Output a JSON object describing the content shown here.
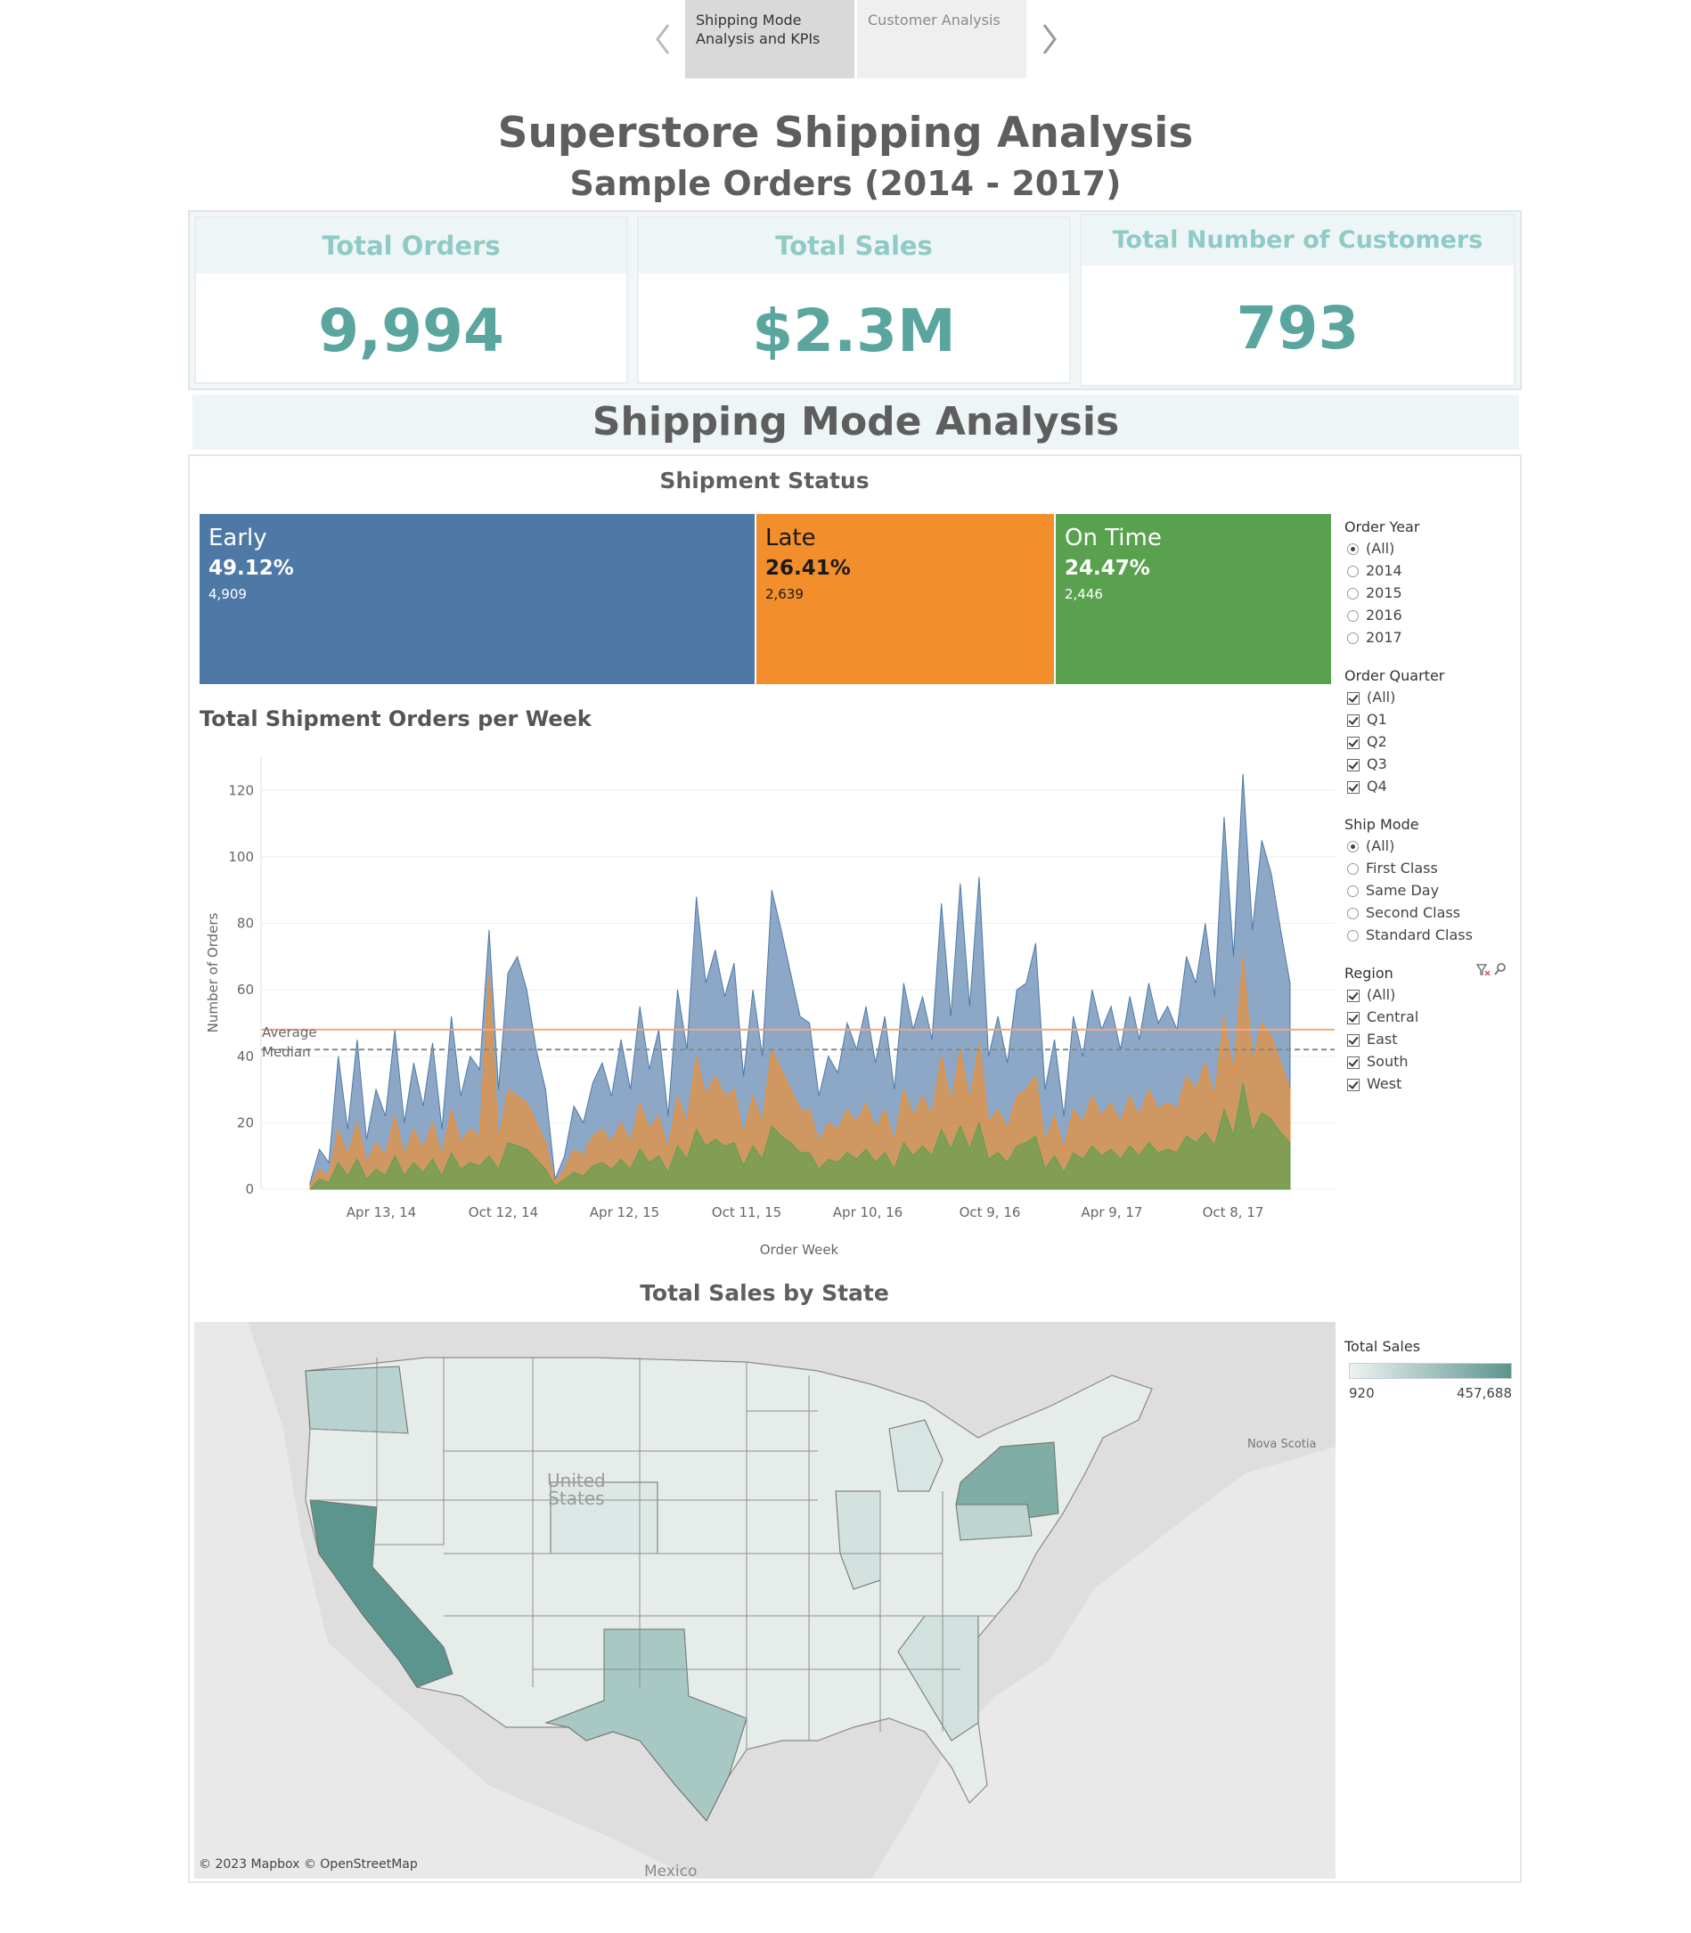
{
  "story": {
    "tabs": [
      {
        "label": "Shipping Mode\nAnalysis and KPIs",
        "line1": "Shipping Mode",
        "line2": "Analysis and KPIs",
        "active": true
      },
      {
        "label": "Customer Analysis",
        "active": false
      }
    ]
  },
  "header": {
    "title": "Superstore Shipping Analysis",
    "subtitle": "Sample Orders (2014 - 2017)"
  },
  "kpis": [
    {
      "label": "Total Orders",
      "value": "9,994"
    },
    {
      "label": "Total Sales",
      "value": "$2.3M"
    },
    {
      "label": "Total Number of Customers",
      "value": "793"
    }
  ],
  "section_title": "Shipping Mode Analysis",
  "shipment_status": {
    "title": "Shipment Status",
    "items": [
      {
        "label": "Early",
        "pct": "49.12%",
        "count": "4,909",
        "color": "#4e79a7"
      },
      {
        "label": "Late",
        "pct": "26.41%",
        "count": "2,639",
        "color": "#f28e2b"
      },
      {
        "label": "On Time",
        "pct": "24.47%",
        "count": "2,446",
        "color": "#59a14f"
      }
    ]
  },
  "weekly_chart": {
    "title": "Total Shipment Orders per Week",
    "ylabel": "Number of Orders",
    "xlabel": "Order Week",
    "yticks": [
      "0",
      "20",
      "40",
      "60",
      "80",
      "100",
      "120"
    ],
    "xticks": [
      "Apr 13, 14",
      "Oct 12, 14",
      "Apr 12, 15",
      "Oct 11, 15",
      "Apr 10, 16",
      "Oct 9, 16",
      "Apr 9, 17",
      "Oct 8, 17"
    ],
    "average_label": "Average",
    "median_label": "Median"
  },
  "chart_data": {
    "type": "area",
    "title": "Total Shipment Orders per Week",
    "xlabel": "Order Week",
    "ylabel": "Number of Orders",
    "ylim": [
      0,
      130
    ],
    "x_ticks": [
      "Apr 13, 14",
      "Oct 12, 14",
      "Apr 12, 15",
      "Oct 11, 15",
      "Apr 10, 16",
      "Oct 9, 16",
      "Apr 9, 17",
      "Oct 8, 17"
    ],
    "reference_lines": [
      {
        "label": "Average",
        "value": 48,
        "color": "#f4a582"
      },
      {
        "label": "Median",
        "value": 42,
        "color": "#888888"
      }
    ],
    "x": [
      "2014-01-05",
      "2014-01-19",
      "2014-02-02",
      "2014-02-16",
      "2014-03-02",
      "2014-03-16",
      "2014-03-30",
      "2014-04-13",
      "2014-04-27",
      "2014-05-11",
      "2014-05-25",
      "2014-06-08",
      "2014-06-22",
      "2014-07-06",
      "2014-07-20",
      "2014-08-03",
      "2014-08-17",
      "2014-08-31",
      "2014-09-14",
      "2014-09-28",
      "2014-10-12",
      "2014-10-26",
      "2014-11-09",
      "2014-11-23",
      "2014-12-07",
      "2014-12-21",
      "2015-01-04",
      "2015-01-18",
      "2015-02-01",
      "2015-02-15",
      "2015-03-01",
      "2015-03-15",
      "2015-03-29",
      "2015-04-12",
      "2015-04-26",
      "2015-05-10",
      "2015-05-24",
      "2015-06-07",
      "2015-06-21",
      "2015-07-05",
      "2015-07-19",
      "2015-08-02",
      "2015-08-16",
      "2015-08-30",
      "2015-09-13",
      "2015-09-27",
      "2015-10-11",
      "2015-10-25",
      "2015-11-08",
      "2015-11-22",
      "2015-12-06",
      "2015-12-20",
      "2016-01-03",
      "2016-01-17",
      "2016-01-31",
      "2016-02-14",
      "2016-02-28",
      "2016-03-13",
      "2016-03-27",
      "2016-04-10",
      "2016-04-24",
      "2016-05-08",
      "2016-05-22",
      "2016-06-05",
      "2016-06-19",
      "2016-07-03",
      "2016-07-17",
      "2016-07-31",
      "2016-08-14",
      "2016-08-28",
      "2016-09-11",
      "2016-09-25",
      "2016-10-09",
      "2016-10-23",
      "2016-11-06",
      "2016-11-20",
      "2016-12-04",
      "2016-12-18",
      "2017-01-01",
      "2017-01-15",
      "2017-01-29",
      "2017-02-12",
      "2017-02-26",
      "2017-03-12",
      "2017-03-26",
      "2017-04-09",
      "2017-04-23",
      "2017-05-07",
      "2017-05-21",
      "2017-06-04",
      "2017-06-18",
      "2017-07-02",
      "2017-07-16",
      "2017-07-30",
      "2017-08-13",
      "2017-08-27",
      "2017-09-10",
      "2017-09-24",
      "2017-10-08",
      "2017-10-22",
      "2017-11-05",
      "2017-11-19",
      "2017-12-03",
      "2017-12-17",
      "2017-12-31"
    ],
    "series": [
      {
        "name": "Early",
        "color": "#4e79a7",
        "values": [
          2,
          12,
          8,
          40,
          18,
          45,
          15,
          30,
          22,
          48,
          20,
          38,
          25,
          44,
          18,
          52,
          28,
          40,
          36,
          78,
          30,
          65,
          70,
          60,
          42,
          30,
          3,
          10,
          25,
          20,
          32,
          38,
          28,
          45,
          30,
          55,
          36,
          48,
          22,
          60,
          42,
          88,
          62,
          72,
          58,
          68,
          34,
          60,
          40,
          90,
          78,
          65,
          52,
          50,
          28,
          40,
          35,
          50,
          42,
          55,
          38,
          52,
          30,
          62,
          48,
          58,
          45,
          86,
          52,
          92,
          55,
          94,
          40,
          52,
          38,
          60,
          62,
          74,
          30,
          45,
          22,
          52,
          40,
          60,
          48,
          55,
          42,
          58,
          45,
          62,
          50,
          55,
          48,
          70,
          62,
          80,
          58,
          112,
          70,
          125,
          78,
          105,
          95,
          78,
          62
        ],
        "stacked_total": true
      },
      {
        "name": "Late",
        "color": "#f28e2b",
        "values": [
          1,
          6,
          4,
          18,
          10,
          20,
          8,
          14,
          10,
          22,
          10,
          18,
          12,
          20,
          10,
          24,
          14,
          18,
          16,
          65,
          14,
          30,
          28,
          26,
          20,
          14,
          2,
          6,
          12,
          10,
          16,
          18,
          14,
          20,
          14,
          26,
          18,
          22,
          12,
          28,
          20,
          40,
          28,
          34,
          28,
          30,
          16,
          28,
          20,
          42,
          36,
          30,
          24,
          24,
          14,
          20,
          18,
          24,
          20,
          26,
          18,
          24,
          14,
          30,
          22,
          28,
          22,
          40,
          26,
          42,
          26,
          44,
          20,
          24,
          18,
          28,
          30,
          34,
          14,
          22,
          12,
          24,
          20,
          28,
          22,
          26,
          20,
          28,
          22,
          30,
          24,
          26,
          24,
          34,
          30,
          38,
          28,
          52,
          34,
          70,
          38,
          50,
          46,
          38,
          30
        ]
      },
      {
        "name": "On Time",
        "color": "#59a14f",
        "values": [
          0,
          3,
          2,
          8,
          4,
          9,
          3,
          6,
          4,
          10,
          4,
          8,
          5,
          9,
          4,
          11,
          6,
          8,
          7,
          10,
          6,
          14,
          13,
          12,
          9,
          6,
          1,
          3,
          5,
          4,
          7,
          8,
          6,
          9,
          6,
          12,
          8,
          10,
          5,
          13,
          9,
          18,
          13,
          15,
          13,
          14,
          7,
          13,
          9,
          19,
          16,
          14,
          11,
          11,
          6,
          9,
          8,
          11,
          9,
          12,
          8,
          11,
          6,
          14,
          10,
          13,
          10,
          18,
          12,
          19,
          12,
          20,
          9,
          11,
          8,
          13,
          14,
          16,
          6,
          10,
          5,
          11,
          9,
          13,
          10,
          12,
          9,
          13,
          10,
          14,
          11,
          12,
          11,
          16,
          14,
          17,
          13,
          24,
          16,
          32,
          17,
          23,
          21,
          17,
          14
        ]
      }
    ],
    "average": 48,
    "median": 42,
    "note_stacking": "values plotted as stacked areas: On Time at bottom, Late above, Early on top; Early values are cumulative totals"
  },
  "map": {
    "title": "Total Sales by State",
    "attribution": "© 2023 Mapbox  © OpenStreetMap",
    "legend_title": "Total Sales",
    "legend_min": "920",
    "legend_max": "457,688",
    "label_united_states": "United\nStates",
    "label_mexico": "Mexico",
    "label_nova_scotia": "Nova Scotia",
    "low_color": "#ecf3f2",
    "high_color": "#5c958d"
  },
  "filters": {
    "order_year": {
      "title": "Order Year",
      "options": [
        "(All)",
        "2014",
        "2015",
        "2016",
        "2017"
      ],
      "selected": "(All)"
    },
    "order_quarter": {
      "title": "Order Quarter",
      "options": [
        "(All)",
        "Q1",
        "Q2",
        "Q3",
        "Q4"
      ]
    },
    "ship_mode": {
      "title": "Ship Mode",
      "options": [
        "(All)",
        "First Class",
        "Same Day",
        "Second Class",
        "Standard Class"
      ],
      "selected": "(All)"
    },
    "region": {
      "title": "Region",
      "options": [
        "(All)",
        "Central",
        "East",
        "South",
        "West"
      ]
    }
  }
}
